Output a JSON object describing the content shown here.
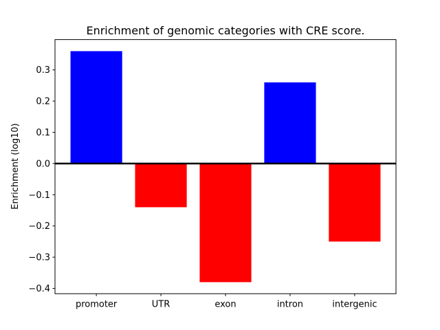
{
  "chart_data": {
    "type": "bar",
    "title": "Enrichment of genomic categories with CRE score.",
    "xlabel": "",
    "ylabel": "Enrichment (log10)",
    "categories": [
      "promoter",
      "UTR",
      "exon",
      "intron",
      "intergenic"
    ],
    "values": [
      0.36,
      -0.14,
      -0.38,
      0.26,
      -0.25
    ],
    "bar_colors": [
      "#0000ff",
      "#ff0000",
      "#ff0000",
      "#0000ff",
      "#ff0000"
    ],
    "positive_color": "#0000ff",
    "negative_color": "#ff0000",
    "yticks": [
      0.3,
      0.2,
      0.1,
      0.0,
      -0.1,
      -0.2,
      -0.3,
      -0.4
    ],
    "ytick_labels": [
      "0.3",
      "0.2",
      "0.1",
      "0.0",
      "−0.1",
      "−0.2",
      "−0.3",
      "−0.4"
    ],
    "ylim": [
      -0.417,
      0.397
    ],
    "xlim": [
      -0.64,
      4.64
    ],
    "bar_width_units": 0.8,
    "grid": false,
    "legend_position": "none",
    "zero_line": true,
    "axis_color": "#000000",
    "background_color": "#ffffff"
  }
}
